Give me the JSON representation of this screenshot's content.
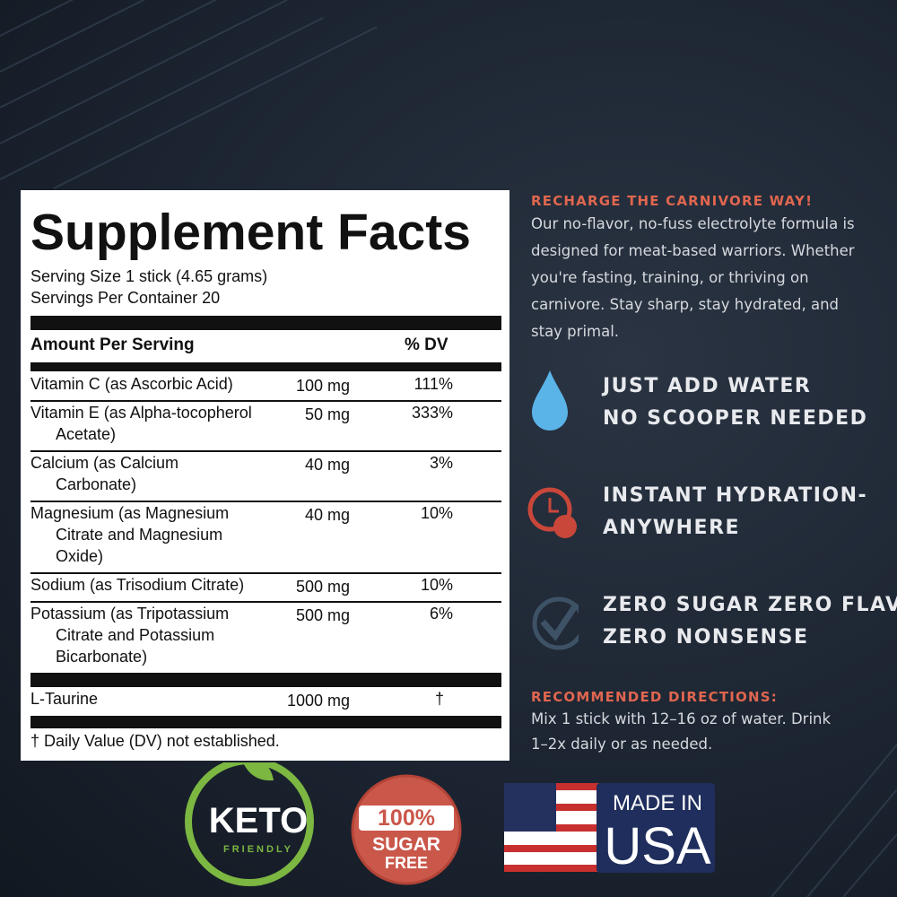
{
  "facts": {
    "title": "Supplement Facts",
    "serving_size": "Serving Size 1 stick (4.65 grams)",
    "servings_per_container": "Servings Per Container 20",
    "header": {
      "amount": "Amount Per Serving",
      "dv": "% DV"
    },
    "rows": [
      {
        "name": [
          "Vitamin C (as Ascorbic Acid)"
        ],
        "amount": "100 mg",
        "dv": "111%"
      },
      {
        "name": [
          "Vitamin E (as Alpha-tocopherol",
          "Acetate)"
        ],
        "amount": "50 mg",
        "dv": "333%"
      },
      {
        "name": [
          "Calcium (as Calcium",
          "Carbonate)"
        ],
        "amount": "40 mg",
        "dv": "3%"
      },
      {
        "name": [
          "Magnesium (as Magnesium",
          "Citrate and Magnesium",
          "Oxide)"
        ],
        "amount": "40 mg",
        "dv": "10%"
      },
      {
        "name": [
          "Sodium (as Trisodium Citrate)"
        ],
        "amount": "500 mg",
        "dv": "10%"
      },
      {
        "name": [
          "Potassium (as Tripotassium",
          "Citrate and Potassium",
          "Bicarbonate)"
        ],
        "amount": "500 mg",
        "dv": "6%"
      }
    ],
    "taurine": {
      "name": "L-Taurine",
      "amount": "1000 mg",
      "dv": "†"
    },
    "footnote": "† Daily Value (DV) not established."
  },
  "pitch": {
    "heading": "RECHARGE THE CARNIVORE WAY!",
    "lines": [
      "Our no-flavor, no-fuss electrolyte formula is",
      "designed for meat-based warriors. Whether",
      "you're fasting, training, or thriving on",
      "carnivore. Stay sharp, stay hydrated, and",
      "stay primal."
    ]
  },
  "features": [
    {
      "lines": [
        "JUST ADD WATER",
        "NO SCOOPER NEEDED"
      ]
    },
    {
      "lines": [
        "INSTANT HYDRATION-",
        "ANYWHERE"
      ]
    },
    {
      "lines": [
        "ZERO SUGAR ZERO FLAVOR",
        "ZERO NONSENSE"
      ]
    }
  ],
  "directions": {
    "heading": "RECOMMENDED DIRECTIONS:",
    "lines": [
      "Mix 1 stick with 12–16 oz of water. Drink",
      "1–2x daily or as needed."
    ]
  },
  "badges": {
    "keto": {
      "main": "KETO",
      "sub": "FRIENDLY"
    },
    "sugar": {
      "top": "100%",
      "mid": "SUGAR",
      "bottom": "FREE"
    },
    "usa": {
      "line1": "MADE IN",
      "line2": "USA"
    }
  }
}
